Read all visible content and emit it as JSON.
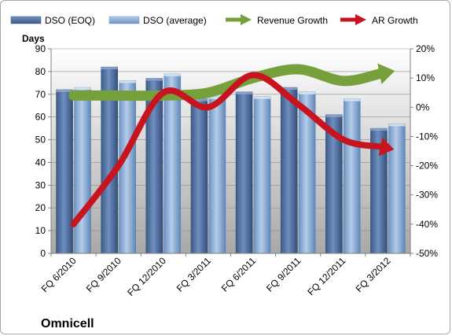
{
  "company": "Omnicell",
  "legend": {
    "dso_eoq": "DSO (EOQ)",
    "dso_avg": "DSO (average)",
    "revenue_growth": "Revenue Growth",
    "ar_growth": "AR Growth"
  },
  "colors": {
    "dso_eoq": "#4f6e9e",
    "dso_avg": "#8fb2d9",
    "revenue_growth": "#76a03c",
    "ar_growth": "#c8141e"
  },
  "chart_data": {
    "type": "bar",
    "categories": [
      "FQ 6/2010",
      "FQ 9/2010",
      "FQ 12/2010",
      "FQ 3/2011",
      "FQ 6/2011",
      "FQ 9/2011",
      "FQ 12/2011",
      "FQ 3/2012"
    ],
    "ylabel": "Days",
    "ylim": [
      0,
      90
    ],
    "yticks": [
      0,
      10,
      20,
      30,
      40,
      50,
      60,
      70,
      80,
      90
    ],
    "y2lim": [
      -50,
      20
    ],
    "y2ticks": [
      "-50%",
      "-40%",
      "-30%",
      "-20%",
      "-10%",
      "0%",
      "10%",
      "20%"
    ],
    "series": [
      {
        "name": "DSO (EOQ)",
        "type": "bar",
        "axis": "left",
        "values": [
          72,
          82,
          77,
          68,
          71,
          73,
          61,
          55
        ]
      },
      {
        "name": "DSO (average)",
        "type": "bar",
        "axis": "left",
        "values": [
          73,
          76,
          79,
          69,
          69,
          71,
          68,
          57
        ]
      },
      {
        "name": "Revenue Growth",
        "type": "line-arrow",
        "axis": "right",
        "values": [
          4,
          4,
          4,
          5,
          10,
          13,
          9,
          12
        ]
      },
      {
        "name": "AR Growth",
        "type": "line-arrow",
        "axis": "right",
        "values": [
          -40,
          -20,
          5,
          0,
          11,
          1,
          -11,
          -14
        ]
      }
    ],
    "grid": true,
    "legend_position": "top"
  }
}
